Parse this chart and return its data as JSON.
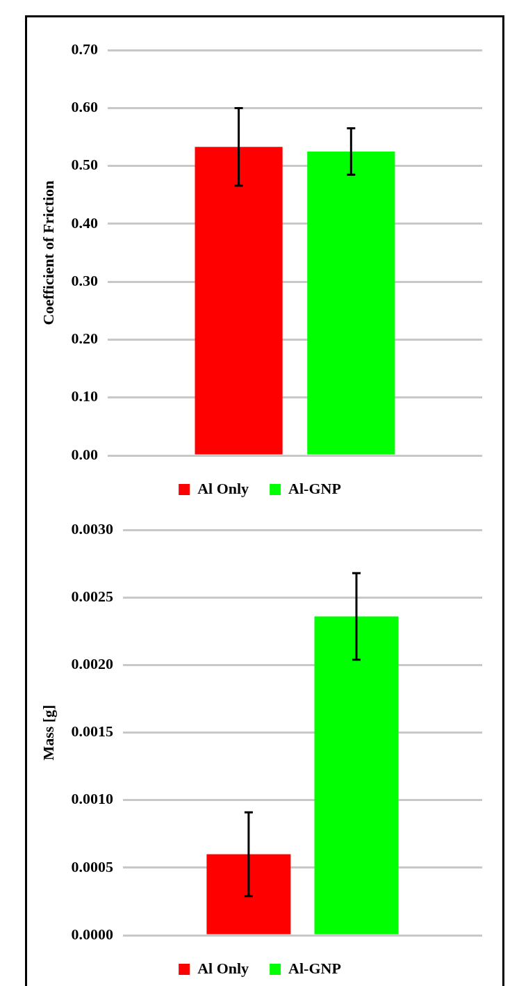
{
  "chart_data": [
    {
      "type": "bar",
      "ylabel": "Coefficient of Friction",
      "categories": [
        null
      ],
      "series": [
        {
          "name": "Al Only",
          "color": "#ff0000",
          "values": [
            0.533
          ],
          "errors": [
            0.067
          ]
        },
        {
          "name": "Al-GNP",
          "color": "#00ff00",
          "values": [
            0.525
          ],
          "errors": [
            0.04
          ]
        }
      ],
      "ylim": [
        0,
        0.7
      ],
      "yticks": [
        {
          "value": 0,
          "label": "0.00"
        },
        {
          "value": 0.1,
          "label": "0.10"
        },
        {
          "value": 0.2,
          "label": "0.20"
        },
        {
          "value": 0.3,
          "label": "0.30"
        },
        {
          "value": 0.4,
          "label": "0.40"
        },
        {
          "value": 0.5,
          "label": "0.50"
        },
        {
          "value": 0.6,
          "label": "0.60"
        },
        {
          "value": 0.7,
          "label": "0.70"
        }
      ],
      "grid": "y",
      "legend": "bottom",
      "tick_labels": "y"
    },
    {
      "type": "bar",
      "ylabel": "Mass [g]",
      "categories": [
        null
      ],
      "series": [
        {
          "name": "Al Only",
          "color": "#ff0000",
          "values": [
            0.0006
          ],
          "errors": [
            0.00031
          ]
        },
        {
          "name": "Al-GNP",
          "color": "#00ff00",
          "values": [
            0.00236
          ],
          "errors": [
            0.00032
          ]
        }
      ],
      "ylim": [
        0,
        0.003
      ],
      "yticks": [
        {
          "value": 0,
          "label": "0.0000"
        },
        {
          "value": 0.0005,
          "label": "0.0005"
        },
        {
          "value": 0.001,
          "label": "0.0010"
        },
        {
          "value": 0.0015,
          "label": "0.0015"
        },
        {
          "value": 0.002,
          "label": "0.0020"
        },
        {
          "value": 0.0025,
          "label": "0.0025"
        },
        {
          "value": 0.003,
          "label": "0.0030"
        }
      ],
      "grid": "y",
      "legend": "bottom",
      "tick_labels": "y"
    }
  ]
}
